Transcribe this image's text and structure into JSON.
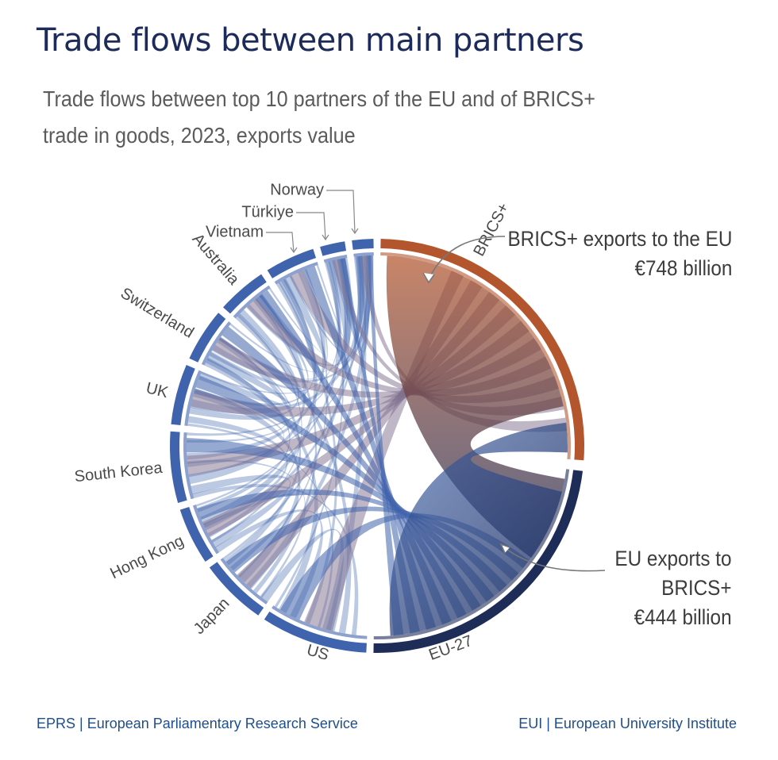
{
  "title": "Trade flows between main partners",
  "subtitle_line1": "Trade flows between top 10 partners of the EU and of BRICS+",
  "subtitle_line2": "trade in goods, 2023, exports value",
  "annotations": {
    "brics_line1": "BRICS+ exports to the EU",
    "brics_line2": "€748 billion",
    "eu_line1": "EU exports to",
    "eu_line2": "BRICS+",
    "eu_line3": "€444 billion"
  },
  "footer": {
    "left": "EPRS | European Parliamentary Research Service",
    "right": "EUI | European University Institute"
  },
  "colors": {
    "brics": "#b3562e",
    "eu": "#1e2c58",
    "partners": "#3f63ac",
    "text": "#3c3c3c"
  },
  "chart_data": {
    "type": "chord",
    "nodes": [
      "BRICS+",
      "EU-27",
      "US",
      "Japan",
      "Hong Kong",
      "South Korea",
      "UK",
      "Switzerland",
      "Australia",
      "Vietnam",
      "Türkiye",
      "Norway"
    ],
    "highlighted_flows": [
      {
        "from": "BRICS+",
        "to": "EU-27",
        "value": 748,
        "unit": "€ billion"
      },
      {
        "from": "EU-27",
        "to": "BRICS+",
        "value": 444,
        "unit": "€ billion"
      }
    ]
  }
}
